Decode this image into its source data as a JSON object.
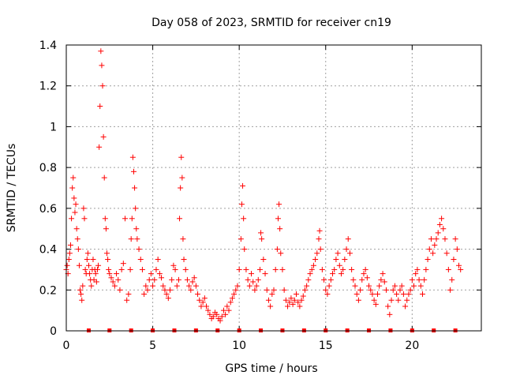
{
  "chart_data": {
    "type": "scatter",
    "title": "Day 058 of 2023, SRMTID for receiver cn19",
    "xlabel": "GPS time / hours",
    "ylabel": "SRMTID / TECUs",
    "xlim": [
      0,
      24
    ],
    "ylim": [
      0,
      1.4
    ],
    "xticks": [
      0,
      5,
      10,
      15,
      20
    ],
    "xtick_labels": [
      "0",
      "5",
      "10",
      "15",
      "20"
    ],
    "yticks": [
      0,
      0.2,
      0.4,
      0.6,
      0.8,
      1.0,
      1.2,
      1.4
    ],
    "ytick_labels": [
      "0",
      "0.2",
      "0.4",
      "0.6",
      "0.8",
      "1",
      "1.2",
      "1.4"
    ],
    "grid": true,
    "series_color": "#ff0000",
    "marker": "plus",
    "series": [
      {
        "name": "SRMTID",
        "points": [
          [
            0.0,
            0.3
          ],
          [
            0.05,
            0.32
          ],
          [
            0.1,
            0.28
          ],
          [
            0.15,
            0.35
          ],
          [
            0.2,
            0.38
          ],
          [
            0.25,
            0.42
          ],
          [
            0.3,
            0.55
          ],
          [
            0.35,
            0.7
          ],
          [
            0.4,
            0.75
          ],
          [
            0.45,
            0.65
          ],
          [
            0.5,
            0.58
          ],
          [
            0.55,
            0.62
          ],
          [
            0.6,
            0.5
          ],
          [
            0.65,
            0.45
          ],
          [
            0.7,
            0.4
          ],
          [
            0.75,
            0.32
          ],
          [
            0.8,
            0.2
          ],
          [
            0.85,
            0.18
          ],
          [
            0.9,
            0.15
          ],
          [
            0.95,
            0.22
          ],
          [
            1.0,
            0.6
          ],
          [
            1.05,
            0.55
          ],
          [
            1.1,
            0.3
          ],
          [
            1.15,
            0.28
          ],
          [
            1.2,
            0.35
          ],
          [
            1.25,
            0.38
          ],
          [
            1.3,
            0.32
          ],
          [
            1.35,
            0.28
          ],
          [
            1.4,
            0.25
          ],
          [
            1.45,
            0.22
          ],
          [
            1.5,
            0.3
          ],
          [
            1.55,
            0.35
          ],
          [
            1.6,
            0.25
          ],
          [
            1.65,
            0.3
          ],
          [
            1.7,
            0.28
          ],
          [
            1.75,
            0.24
          ],
          [
            1.8,
            0.3
          ],
          [
            1.85,
            0.32
          ],
          [
            1.9,
            0.9
          ],
          [
            1.95,
            1.1
          ],
          [
            2.0,
            1.37
          ],
          [
            2.05,
            1.3
          ],
          [
            2.1,
            1.2
          ],
          [
            2.15,
            0.95
          ],
          [
            2.2,
            0.75
          ],
          [
            2.25,
            0.55
          ],
          [
            2.3,
            0.5
          ],
          [
            2.35,
            0.38
          ],
          [
            2.4,
            0.35
          ],
          [
            2.45,
            0.3
          ],
          [
            2.5,
            0.28
          ],
          [
            2.6,
            0.26
          ],
          [
            2.7,
            0.24
          ],
          [
            2.8,
            0.22
          ],
          [
            2.9,
            0.28
          ],
          [
            3.0,
            0.25
          ],
          [
            3.1,
            0.2
          ],
          [
            3.2,
            0.3
          ],
          [
            3.3,
            0.33
          ],
          [
            3.4,
            0.55
          ],
          [
            3.5,
            0.15
          ],
          [
            3.6,
            0.18
          ],
          [
            3.7,
            0.3
          ],
          [
            3.75,
            0.45
          ],
          [
            3.8,
            0.55
          ],
          [
            3.85,
            0.85
          ],
          [
            3.9,
            0.78
          ],
          [
            3.95,
            0.7
          ],
          [
            4.0,
            0.6
          ],
          [
            4.05,
            0.5
          ],
          [
            4.1,
            0.45
          ],
          [
            4.2,
            0.4
          ],
          [
            4.3,
            0.35
          ],
          [
            4.4,
            0.3
          ],
          [
            4.5,
            0.18
          ],
          [
            4.6,
            0.22
          ],
          [
            4.7,
            0.2
          ],
          [
            4.8,
            0.25
          ],
          [
            4.9,
            0.28
          ],
          [
            5.0,
            0.22
          ],
          [
            5.1,
            0.25
          ],
          [
            5.2,
            0.3
          ],
          [
            5.3,
            0.35
          ],
          [
            5.4,
            0.28
          ],
          [
            5.5,
            0.26
          ],
          [
            5.6,
            0.22
          ],
          [
            5.7,
            0.2
          ],
          [
            5.8,
            0.18
          ],
          [
            5.9,
            0.16
          ],
          [
            6.0,
            0.2
          ],
          [
            6.1,
            0.25
          ],
          [
            6.2,
            0.32
          ],
          [
            6.3,
            0.3
          ],
          [
            6.4,
            0.22
          ],
          [
            6.5,
            0.25
          ],
          [
            6.55,
            0.55
          ],
          [
            6.6,
            0.7
          ],
          [
            6.65,
            0.85
          ],
          [
            6.7,
            0.75
          ],
          [
            6.75,
            0.45
          ],
          [
            6.8,
            0.35
          ],
          [
            6.9,
            0.3
          ],
          [
            7.0,
            0.25
          ],
          [
            7.1,
            0.22
          ],
          [
            7.2,
            0.2
          ],
          [
            7.3,
            0.24
          ],
          [
            7.4,
            0.26
          ],
          [
            7.5,
            0.22
          ],
          [
            7.6,
            0.18
          ],
          [
            7.7,
            0.15
          ],
          [
            7.8,
            0.12
          ],
          [
            7.9,
            0.14
          ],
          [
            8.0,
            0.16
          ],
          [
            8.1,
            0.12
          ],
          [
            8.2,
            0.1
          ],
          [
            8.3,
            0.08
          ],
          [
            8.4,
            0.06
          ],
          [
            8.5,
            0.07
          ],
          [
            8.6,
            0.09
          ],
          [
            8.7,
            0.08
          ],
          [
            8.8,
            0.06
          ],
          [
            8.9,
            0.05
          ],
          [
            9.0,
            0.07
          ],
          [
            9.1,
            0.1
          ],
          [
            9.2,
            0.08
          ],
          [
            9.3,
            0.12
          ],
          [
            9.4,
            0.1
          ],
          [
            9.5,
            0.14
          ],
          [
            9.6,
            0.16
          ],
          [
            9.7,
            0.18
          ],
          [
            9.8,
            0.2
          ],
          [
            9.9,
            0.22
          ],
          [
            10.0,
            0.3
          ],
          [
            10.1,
            0.45
          ],
          [
            10.15,
            0.62
          ],
          [
            10.2,
            0.71
          ],
          [
            10.25,
            0.55
          ],
          [
            10.3,
            0.4
          ],
          [
            10.4,
            0.3
          ],
          [
            10.5,
            0.25
          ],
          [
            10.6,
            0.22
          ],
          [
            10.7,
            0.28
          ],
          [
            10.8,
            0.24
          ],
          [
            10.9,
            0.2
          ],
          [
            11.0,
            0.22
          ],
          [
            11.1,
            0.25
          ],
          [
            11.2,
            0.3
          ],
          [
            11.25,
            0.48
          ],
          [
            11.3,
            0.45
          ],
          [
            11.4,
            0.35
          ],
          [
            11.5,
            0.28
          ],
          [
            11.6,
            0.2
          ],
          [
            11.7,
            0.15
          ],
          [
            11.8,
            0.12
          ],
          [
            11.9,
            0.18
          ],
          [
            12.0,
            0.2
          ],
          [
            12.1,
            0.3
          ],
          [
            12.2,
            0.4
          ],
          [
            12.25,
            0.55
          ],
          [
            12.3,
            0.62
          ],
          [
            12.35,
            0.5
          ],
          [
            12.4,
            0.38
          ],
          [
            12.5,
            0.3
          ],
          [
            12.6,
            0.2
          ],
          [
            12.7,
            0.15
          ],
          [
            12.8,
            0.12
          ],
          [
            12.9,
            0.14
          ],
          [
            13.0,
            0.16
          ],
          [
            13.1,
            0.13
          ],
          [
            13.2,
            0.15
          ],
          [
            13.3,
            0.18
          ],
          [
            13.4,
            0.14
          ],
          [
            13.5,
            0.12
          ],
          [
            13.6,
            0.15
          ],
          [
            13.7,
            0.17
          ],
          [
            13.8,
            0.2
          ],
          [
            13.9,
            0.22
          ],
          [
            14.0,
            0.25
          ],
          [
            14.1,
            0.28
          ],
          [
            14.2,
            0.3
          ],
          [
            14.3,
            0.32
          ],
          [
            14.4,
            0.35
          ],
          [
            14.5,
            0.38
          ],
          [
            14.6,
            0.45
          ],
          [
            14.65,
            0.49
          ],
          [
            14.7,
            0.4
          ],
          [
            14.8,
            0.3
          ],
          [
            14.9,
            0.25
          ],
          [
            15.0,
            0.2
          ],
          [
            15.1,
            0.18
          ],
          [
            15.2,
            0.22
          ],
          [
            15.3,
            0.25
          ],
          [
            15.4,
            0.28
          ],
          [
            15.5,
            0.3
          ],
          [
            15.6,
            0.35
          ],
          [
            15.7,
            0.38
          ],
          [
            15.8,
            0.32
          ],
          [
            15.9,
            0.28
          ],
          [
            16.0,
            0.3
          ],
          [
            16.1,
            0.35
          ],
          [
            16.2,
            0.4
          ],
          [
            16.3,
            0.45
          ],
          [
            16.4,
            0.38
          ],
          [
            16.5,
            0.3
          ],
          [
            16.6,
            0.25
          ],
          [
            16.7,
            0.22
          ],
          [
            16.8,
            0.18
          ],
          [
            16.9,
            0.15
          ],
          [
            17.0,
            0.2
          ],
          [
            17.1,
            0.25
          ],
          [
            17.2,
            0.28
          ],
          [
            17.3,
            0.3
          ],
          [
            17.4,
            0.26
          ],
          [
            17.5,
            0.22
          ],
          [
            17.6,
            0.2
          ],
          [
            17.7,
            0.18
          ],
          [
            17.8,
            0.15
          ],
          [
            17.9,
            0.13
          ],
          [
            18.0,
            0.18
          ],
          [
            18.1,
            0.22
          ],
          [
            18.2,
            0.25
          ],
          [
            18.3,
            0.28
          ],
          [
            18.4,
            0.24
          ],
          [
            18.5,
            0.2
          ],
          [
            18.6,
            0.12
          ],
          [
            18.7,
            0.08
          ],
          [
            18.8,
            0.15
          ],
          [
            18.9,
            0.2
          ],
          [
            19.0,
            0.22
          ],
          [
            19.1,
            0.18
          ],
          [
            19.2,
            0.15
          ],
          [
            19.3,
            0.2
          ],
          [
            19.4,
            0.22
          ],
          [
            19.5,
            0.18
          ],
          [
            19.6,
            0.12
          ],
          [
            19.7,
            0.15
          ],
          [
            19.8,
            0.18
          ],
          [
            19.9,
            0.2
          ],
          [
            20.0,
            0.25
          ],
          [
            20.1,
            0.22
          ],
          [
            20.2,
            0.28
          ],
          [
            20.3,
            0.3
          ],
          [
            20.4,
            0.25
          ],
          [
            20.5,
            0.22
          ],
          [
            20.6,
            0.18
          ],
          [
            20.7,
            0.25
          ],
          [
            20.8,
            0.3
          ],
          [
            20.9,
            0.35
          ],
          [
            21.0,
            0.4
          ],
          [
            21.1,
            0.45
          ],
          [
            21.2,
            0.38
          ],
          [
            21.3,
            0.42
          ],
          [
            21.4,
            0.45
          ],
          [
            21.5,
            0.48
          ],
          [
            21.6,
            0.52
          ],
          [
            21.7,
            0.55
          ],
          [
            21.8,
            0.5
          ],
          [
            21.9,
            0.45
          ],
          [
            22.0,
            0.38
          ],
          [
            22.1,
            0.3
          ],
          [
            22.2,
            0.2
          ],
          [
            22.3,
            0.25
          ],
          [
            22.4,
            0.35
          ],
          [
            22.5,
            0.45
          ],
          [
            22.6,
            0.4
          ],
          [
            22.7,
            0.32
          ],
          [
            22.8,
            0.3
          ]
        ]
      }
    ],
    "zero_markers_x": [
      1.3,
      2.5,
      3.75,
      5.0,
      6.25,
      7.5,
      8.75,
      10.0,
      11.25,
      12.5,
      13.75,
      15.0,
      16.25,
      17.5,
      18.75,
      20.0,
      21.25,
      22.5
    ]
  }
}
